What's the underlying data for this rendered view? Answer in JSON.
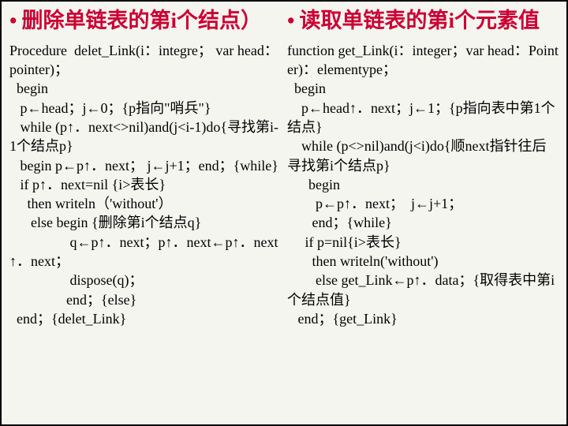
{
  "colors": {
    "heading": "#cc0033",
    "text": "#000000",
    "background": "#f5f5f0",
    "border": "#000000"
  },
  "fonts": {
    "heading_size": 27,
    "body_size": 18,
    "family": "SimSun, Times New Roman, serif"
  },
  "left": {
    "bullet": "•",
    "title": "删除单链表的第i个结点）",
    "code": "Procedure  delet_Link(i：integre； var head：pointer)；\n  begin\n   p←head；j←0；{p指向\"哨兵\"}\n   while (p↑．next<>nil)and(j<i-1)do{寻找第i-1个结点p}\n   begin p←p↑．next； j←j+1；end；{while}\n   if p↑．next=nil {i>表长}\n     then writeln（'without'）\n      else begin {删除第i个结点q}\n                 q←p↑．next；p↑．next←p↑．next↑．next；\n                 dispose(q)；\n                end；{else}\n  end；{delet_Link}"
  },
  "right": {
    "bullet": "•",
    "title": "读取单链表的第i个元素值",
    "code": "function get_Link(i：integer；var head：Pointer)：elementype；\n  begin\n    p←head↑．next；j←1；{p指向表中第1个结点}\n    while (p<>nil)and(j<i)do{顺next指针往后寻找第i个结点p}\n      begin\n        p←p↑．next；  j←j+1；\n       end；{while}\n     if p=nil{i>表长}\n       then writeln('without')\n        else get_Link←p↑．data；{取得表中第i个结点值}\n   end；{get_Link}"
  }
}
